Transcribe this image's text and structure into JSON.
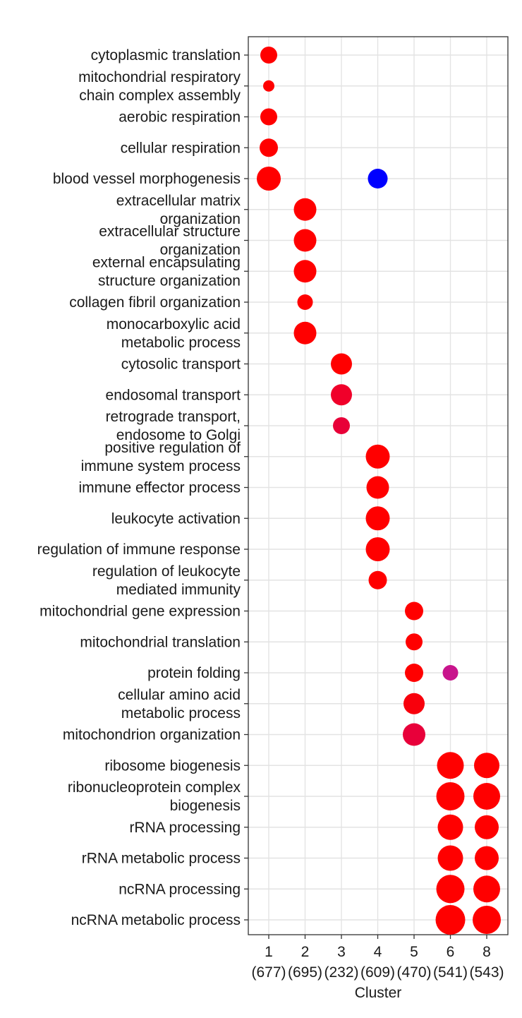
{
  "chart_data": {
    "type": "scatter",
    "title": "",
    "xlabel": "Cluster",
    "ylabel": "",
    "grid": true,
    "legend": "none",
    "x_categories": [
      {
        "id": "1",
        "count": "(677)"
      },
      {
        "id": "2",
        "count": "(695)"
      },
      {
        "id": "3",
        "count": "(232)"
      },
      {
        "id": "4",
        "count": "(609)"
      },
      {
        "id": "5",
        "count": "(470)"
      },
      {
        "id": "6",
        "count": "(541)"
      },
      {
        "id": "8",
        "count": "(543)"
      }
    ],
    "y_categories": [
      [
        "cytoplasmic translation"
      ],
      [
        "mitochondrial respiratory",
        "chain complex assembly"
      ],
      [
        "aerobic respiration"
      ],
      [
        "cellular respiration"
      ],
      [
        "blood vessel morphogenesis"
      ],
      [
        "extracellular matrix",
        "organization"
      ],
      [
        "extracellular structure",
        "organization"
      ],
      [
        "external encapsulating",
        "structure organization"
      ],
      [
        "collagen fibril organization"
      ],
      [
        "monocarboxylic acid",
        "metabolic process"
      ],
      [
        "cytosolic transport"
      ],
      [
        "endosomal transport"
      ],
      [
        "retrograde transport,",
        "endosome to Golgi"
      ],
      [
        "positive regulation of",
        "immune system process"
      ],
      [
        "immune effector process"
      ],
      [
        "leukocyte activation"
      ],
      [
        "regulation of immune response"
      ],
      [
        "regulation of leukocyte",
        "mediated immunity"
      ],
      [
        "mitochondrial gene expression"
      ],
      [
        "mitochondrial translation"
      ],
      [
        "protein folding"
      ],
      [
        "cellular amino acid",
        "metabolic process"
      ],
      [
        "mitochondrion organization"
      ],
      [
        "ribosome biogenesis"
      ],
      [
        "ribonucleoprotein complex",
        "biogenesis"
      ],
      [
        "rRNA processing"
      ],
      [
        "rRNA metabolic process"
      ],
      [
        "ncRNA processing"
      ],
      [
        "ncRNA metabolic process"
      ]
    ],
    "points": [
      {
        "term": 0,
        "cluster": "1",
        "size": 12,
        "color": "#ff0000"
      },
      {
        "term": 1,
        "cluster": "1",
        "size": 8,
        "color": "#ff0000"
      },
      {
        "term": 2,
        "cluster": "1",
        "size": 12,
        "color": "#ff0000"
      },
      {
        "term": 3,
        "cluster": "1",
        "size": 13,
        "color": "#ff0000"
      },
      {
        "term": 4,
        "cluster": "1",
        "size": 17,
        "color": "#ff0000"
      },
      {
        "term": 4,
        "cluster": "4",
        "size": 14,
        "color": "#0000ff"
      },
      {
        "term": 5,
        "cluster": "2",
        "size": 16,
        "color": "#ff0000"
      },
      {
        "term": 6,
        "cluster": "2",
        "size": 16,
        "color": "#ff0000"
      },
      {
        "term": 7,
        "cluster": "2",
        "size": 16,
        "color": "#ff0000"
      },
      {
        "term": 8,
        "cluster": "2",
        "size": 11,
        "color": "#ff0000"
      },
      {
        "term": 9,
        "cluster": "2",
        "size": 16,
        "color": "#ff0000"
      },
      {
        "term": 10,
        "cluster": "3",
        "size": 15,
        "color": "#ff0000"
      },
      {
        "term": 11,
        "cluster": "3",
        "size": 15,
        "color": "#f0002a"
      },
      {
        "term": 12,
        "cluster": "3",
        "size": 12,
        "color": "#e80038"
      },
      {
        "term": 13,
        "cluster": "4",
        "size": 17,
        "color": "#ff0000"
      },
      {
        "term": 14,
        "cluster": "4",
        "size": 16,
        "color": "#ff0000"
      },
      {
        "term": 15,
        "cluster": "4",
        "size": 17,
        "color": "#ff0000"
      },
      {
        "term": 16,
        "cluster": "4",
        "size": 17,
        "color": "#ff0000"
      },
      {
        "term": 17,
        "cluster": "4",
        "size": 13,
        "color": "#ff0000"
      },
      {
        "term": 18,
        "cluster": "5",
        "size": 13,
        "color": "#ff0000"
      },
      {
        "term": 19,
        "cluster": "5",
        "size": 12,
        "color": "#ff0000"
      },
      {
        "term": 20,
        "cluster": "5",
        "size": 13,
        "color": "#ff0000"
      },
      {
        "term": 20,
        "cluster": "6",
        "size": 11,
        "color": "#c8148c"
      },
      {
        "term": 21,
        "cluster": "5",
        "size": 15,
        "color": "#f8000c"
      },
      {
        "term": 22,
        "cluster": "5",
        "size": 16,
        "color": "#e8003a"
      },
      {
        "term": 23,
        "cluster": "6",
        "size": 19,
        "color": "#ff0000"
      },
      {
        "term": 23,
        "cluster": "8",
        "size": 18,
        "color": "#ff0000"
      },
      {
        "term": 24,
        "cluster": "6",
        "size": 20,
        "color": "#ff0000"
      },
      {
        "term": 24,
        "cluster": "8",
        "size": 19,
        "color": "#ff0000"
      },
      {
        "term": 25,
        "cluster": "6",
        "size": 18,
        "color": "#ff0000"
      },
      {
        "term": 25,
        "cluster": "8",
        "size": 17,
        "color": "#ff0000"
      },
      {
        "term": 26,
        "cluster": "6",
        "size": 18,
        "color": "#ff0000"
      },
      {
        "term": 26,
        "cluster": "8",
        "size": 17,
        "color": "#ff0000"
      },
      {
        "term": 27,
        "cluster": "6",
        "size": 20,
        "color": "#ff0000"
      },
      {
        "term": 27,
        "cluster": "8",
        "size": 19,
        "color": "#ff0000"
      },
      {
        "term": 28,
        "cluster": "6",
        "size": 21,
        "color": "#ff0000"
      },
      {
        "term": 28,
        "cluster": "8",
        "size": 20,
        "color": "#ff0000"
      }
    ]
  }
}
